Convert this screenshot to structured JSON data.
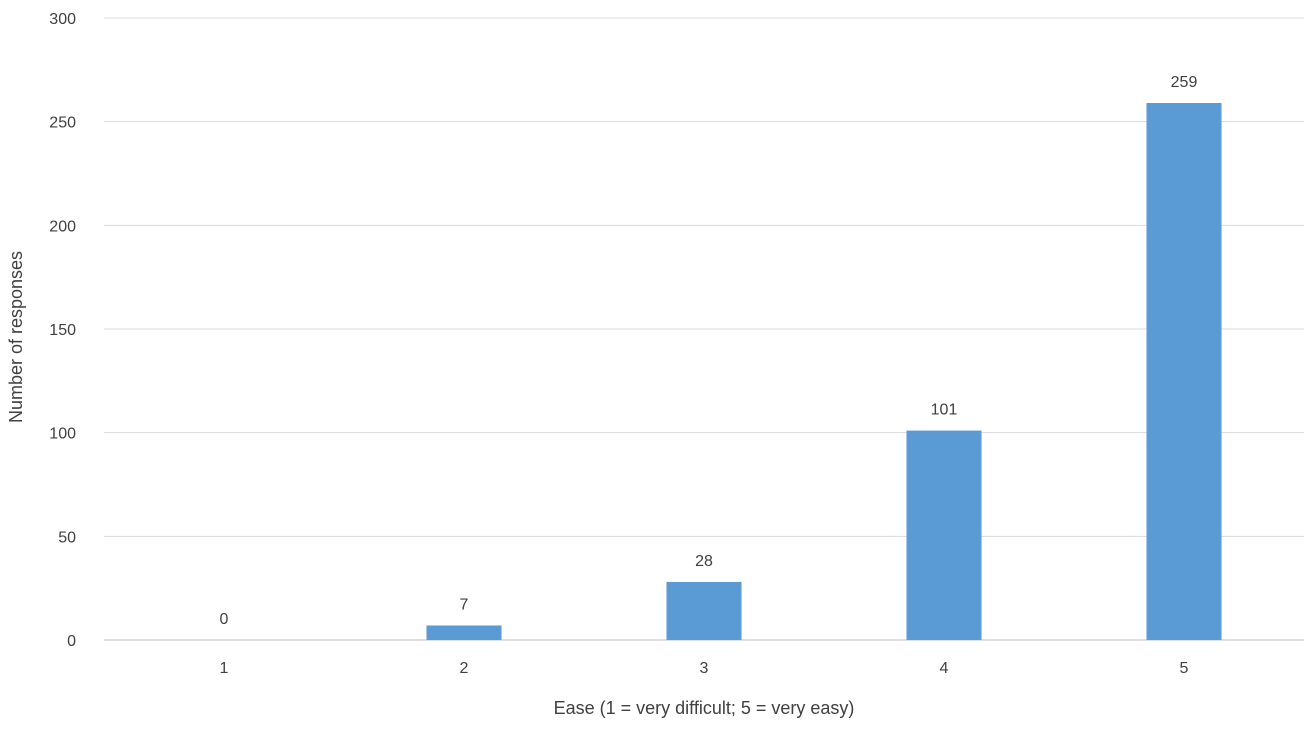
{
  "chart_data": {
    "type": "bar",
    "categories": [
      "1",
      "2",
      "3",
      "4",
      "5"
    ],
    "values": [
      0,
      7,
      28,
      101,
      259
    ],
    "data_labels": [
      "0",
      "7",
      "28",
      "101",
      "259"
    ],
    "title": "",
    "xlabel": "Ease (1 = very difficult; 5 = very easy)",
    "ylabel": "Number of responses",
    "ylim": [
      0,
      300
    ],
    "yticks": [
      0,
      50,
      100,
      150,
      200,
      250,
      300
    ],
    "ytick_labels": [
      "0",
      "50",
      "100",
      "150",
      "200",
      "250",
      "300"
    ],
    "grid": true,
    "legend": "none",
    "colors": {
      "bar": "#5b9bd5",
      "grid": "#d9d9d9",
      "text": "#404040"
    }
  }
}
